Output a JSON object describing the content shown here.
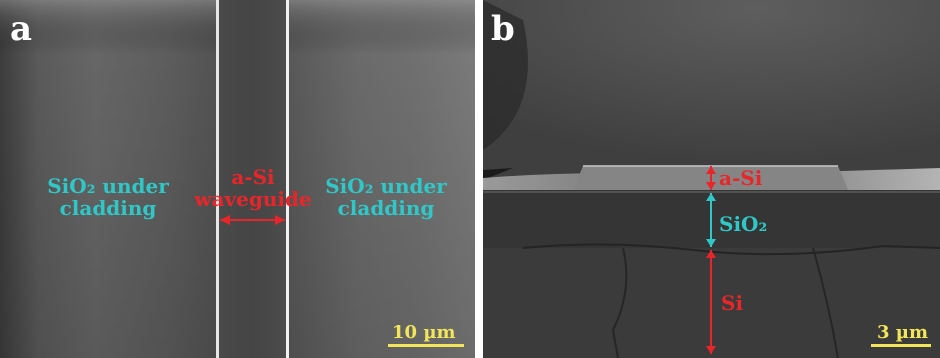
{
  "panels": {
    "a": {
      "letter": "a",
      "left_region_label": [
        "SiO₂ under",
        "cladding"
      ],
      "center_label": [
        "a-Si",
        "waveguide"
      ],
      "right_region_label": [
        "SiO₂ under",
        "cladding"
      ],
      "scale_label": "10 µm"
    },
    "b": {
      "letter": "b",
      "layer_labels": {
        "a_si": "a-Si",
        "sio2": "SiO₂",
        "si": "Si"
      },
      "scale_label": "3 µm"
    }
  },
  "colors": {
    "label_cyan": "#2fc8c8",
    "label_red": "#e8262a",
    "scale_yellow": "#f2e55a"
  }
}
